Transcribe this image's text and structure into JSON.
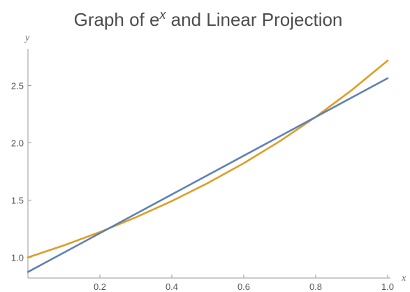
{
  "chart_data": {
    "type": "line",
    "title": "Graph of e^x and Linear Projection",
    "title_base": "Graph of e",
    "title_sup": "x",
    "title_rest": " and Linear Projection",
    "xlabel": "x",
    "ylabel": "y",
    "xlim": [
      0.0,
      1.0
    ],
    "ylim": [
      0.82,
      2.82
    ],
    "xticks": [
      0.2,
      0.4,
      0.6,
      0.8,
      1.0
    ],
    "xtick_labels": [
      "0.2",
      "0.4",
      "0.6",
      "0.8",
      "1.0"
    ],
    "yticks": [
      1.0,
      1.5,
      2.0,
      2.5
    ],
    "ytick_labels": [
      "1.0",
      "1.5",
      "2.0",
      "2.5"
    ],
    "grid": false,
    "legend": "none",
    "series": [
      {
        "function": "e^x",
        "color": "#e19c24",
        "x": [
          0.0,
          0.1,
          0.2,
          0.3,
          0.4,
          0.5,
          0.6,
          0.7,
          0.8,
          0.9,
          1.0
        ],
        "y": [
          1.0,
          1.105,
          1.221,
          1.35,
          1.492,
          1.649,
          1.822,
          2.014,
          2.226,
          2.46,
          2.718
        ]
      },
      {
        "function": "linear projection",
        "color": "#5e81b5",
        "x": [
          0.0,
          1.0
        ],
        "y": [
          0.873,
          2.564
        ]
      }
    ]
  }
}
